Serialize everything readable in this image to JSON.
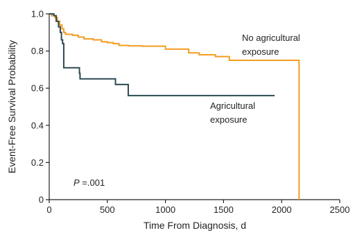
{
  "chart_data": {
    "type": "line",
    "xlabel": "Time From Diagnosis, d",
    "ylabel": "Event-Free Survival Probability",
    "xlim": [
      0,
      2500
    ],
    "ylim": [
      0,
      1.0
    ],
    "x_ticks": [
      0,
      500,
      1000,
      1500,
      2000,
      2500
    ],
    "x_tick_labels": [
      "0",
      "500",
      "1000",
      "1500",
      "2000",
      "2500"
    ],
    "y_ticks": [
      0,
      0.2,
      0.4,
      0.6,
      0.8,
      1.0
    ],
    "y_tick_labels": [
      "0",
      "0.2",
      "0.4",
      "0.6",
      "0.8",
      "1.0"
    ],
    "grid": false,
    "annotation": {
      "p_label": "P",
      "p_value": " =.001"
    },
    "series": [
      {
        "name": "No agricultural exposure",
        "label_lines": [
          "No agricultural",
          "exposure"
        ],
        "color": "#F39C1F",
        "step": true,
        "points": [
          [
            0,
            1.0
          ],
          [
            20,
            0.99
          ],
          [
            50,
            0.98
          ],
          [
            70,
            0.96
          ],
          [
            90,
            0.94
          ],
          [
            110,
            0.92
          ],
          [
            125,
            0.9
          ],
          [
            140,
            0.89
          ],
          [
            200,
            0.885
          ],
          [
            250,
            0.875
          ],
          [
            300,
            0.865
          ],
          [
            380,
            0.86
          ],
          [
            450,
            0.85
          ],
          [
            500,
            0.845
          ],
          [
            550,
            0.84
          ],
          [
            600,
            0.83
          ],
          [
            680,
            0.828
          ],
          [
            800,
            0.826
          ],
          [
            1000,
            0.81
          ],
          [
            1200,
            0.79
          ],
          [
            1290,
            0.78
          ],
          [
            1430,
            0.77
          ],
          [
            1550,
            0.75
          ],
          [
            2150,
            0.75
          ],
          [
            2150,
            0.0
          ]
        ]
      },
      {
        "name": "Agricultural exposure",
        "label_lines": [
          "Agricultural",
          "exposure"
        ],
        "color": "#2C4A52",
        "step": true,
        "points": [
          [
            0,
            1.0
          ],
          [
            40,
            0.99
          ],
          [
            60,
            0.96
          ],
          [
            80,
            0.93
          ],
          [
            95,
            0.9
          ],
          [
            105,
            0.86
          ],
          [
            115,
            0.84
          ],
          [
            125,
            0.71
          ],
          [
            260,
            0.68
          ],
          [
            265,
            0.65
          ],
          [
            570,
            0.62
          ],
          [
            680,
            0.56
          ],
          [
            1940,
            0.56
          ]
        ]
      }
    ]
  }
}
